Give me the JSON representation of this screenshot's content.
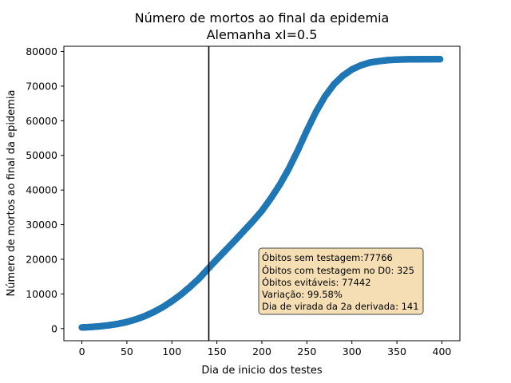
{
  "chart_data": {
    "type": "scatter",
    "title": "Número de mortos ao final da epidemia",
    "subtitle": "Alemanha xI=0.5",
    "xlabel": "Dia de inicio dos testes",
    "ylabel": "Número de mortos ao final da epidemia",
    "xlim": [
      -20,
      420
    ],
    "ylim": [
      -3500,
      81500
    ],
    "xticks": [
      0,
      50,
      100,
      150,
      200,
      250,
      300,
      350,
      400
    ],
    "yticks": [
      0,
      10000,
      20000,
      30000,
      40000,
      50000,
      60000,
      70000,
      80000
    ],
    "vline_x": 141,
    "series": [
      {
        "color": "#1f77b4",
        "points": [
          [
            0,
            325
          ],
          [
            10,
            450
          ],
          [
            20,
            650
          ],
          [
            30,
            950
          ],
          [
            40,
            1350
          ],
          [
            50,
            1900
          ],
          [
            60,
            2650
          ],
          [
            70,
            3600
          ],
          [
            80,
            4800
          ],
          [
            90,
            6200
          ],
          [
            100,
            7900
          ],
          [
            110,
            9800
          ],
          [
            120,
            12000
          ],
          [
            130,
            14400
          ],
          [
            141,
            17500
          ],
          [
            150,
            20000
          ],
          [
            160,
            22700
          ],
          [
            170,
            25400
          ],
          [
            180,
            28200
          ],
          [
            190,
            31000
          ],
          [
            200,
            34000
          ],
          [
            210,
            37600
          ],
          [
            220,
            41600
          ],
          [
            230,
            46200
          ],
          [
            240,
            51500
          ],
          [
            250,
            57200
          ],
          [
            260,
            62500
          ],
          [
            270,
            67000
          ],
          [
            280,
            70500
          ],
          [
            290,
            73000
          ],
          [
            300,
            74800
          ],
          [
            310,
            76000
          ],
          [
            320,
            76800
          ],
          [
            330,
            77200
          ],
          [
            340,
            77500
          ],
          [
            350,
            77650
          ],
          [
            360,
            77720
          ],
          [
            370,
            77750
          ],
          [
            380,
            77760
          ],
          [
            390,
            77766
          ],
          [
            398,
            77766
          ]
        ]
      }
    ],
    "annotation": {
      "lines": [
        "Óbitos sem testagem:77766",
        "Óbitos com testagem no D0: 325",
        "Óbitos evitáveis: 77442",
        "Variação: 99.58%",
        "Dia de virada da 2a derivada: 141"
      ],
      "background": "#f5deb3"
    }
  }
}
